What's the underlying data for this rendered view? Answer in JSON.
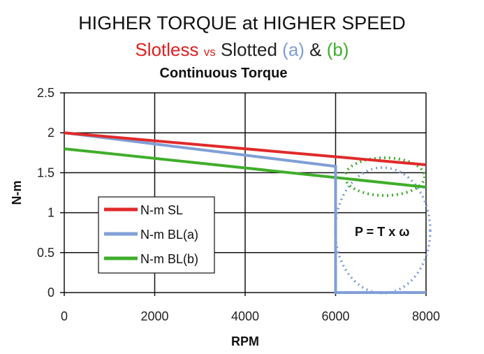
{
  "title": {
    "line1": "HIGHER TORQUE at HIGHER SPEED",
    "slotless": "Slotless",
    "vs": "vs",
    "slotted": "Slotted",
    "a": "(a)",
    "amp": "&",
    "b": "(b)"
  },
  "colors": {
    "sl": "#e02a2a",
    "bla": "#7f9fd6",
    "blb": "#3fae2a",
    "slotted_text": "#222222"
  },
  "chart_data": {
    "type": "line",
    "title": "Continuous Torque",
    "xlabel": "RPM",
    "ylabel": "N-m",
    "xlim": [
      0,
      8000
    ],
    "ylim": [
      0,
      2.5
    ],
    "xticks": [
      "0",
      "2000",
      "4000",
      "6000",
      "8000"
    ],
    "yticks": [
      "0",
      "0.5",
      "1",
      "1.5",
      "2",
      "2.5"
    ],
    "grid": true,
    "legend_position": "center-left",
    "series": [
      {
        "name": "N-m SL",
        "x": [
          0,
          8000
        ],
        "y": [
          2.0,
          1.6
        ]
      },
      {
        "name": "N-m BL(a)",
        "x": [
          0,
          6000,
          6000,
          8000
        ],
        "y": [
          2.0,
          1.58,
          0,
          0
        ]
      },
      {
        "name": "N-m BL(b)",
        "x": [
          0,
          8000
        ],
        "y": [
          1.8,
          1.32
        ]
      }
    ],
    "annotations": [
      {
        "text": "P = T x ω"
      }
    ]
  }
}
